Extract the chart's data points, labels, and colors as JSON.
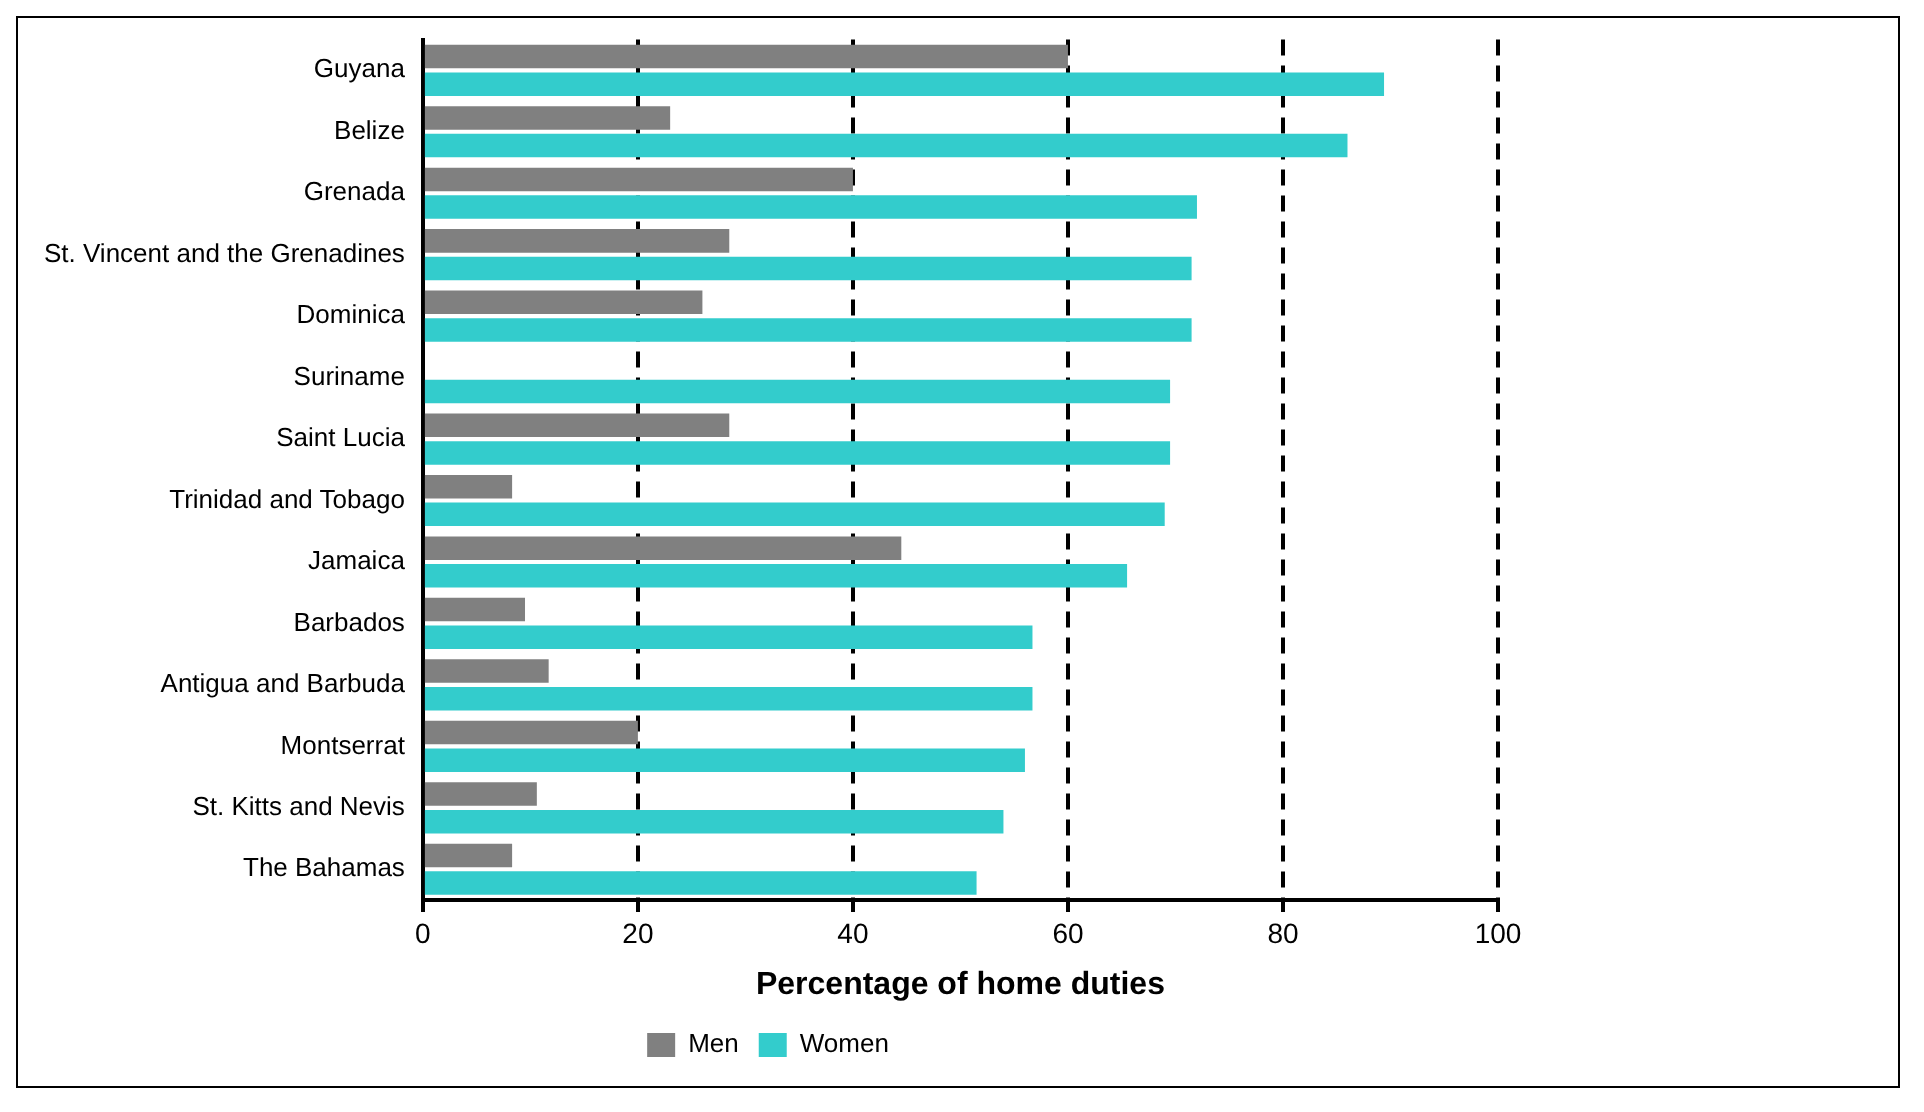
{
  "chart_data": {
    "type": "bar",
    "orientation": "horizontal",
    "xlabel": "Percentage of home duties",
    "categories": [
      "Guyana",
      "Belize",
      "Grenada",
      "St. Vincent and the Grenadines",
      "Dominica",
      "Suriname",
      "Saint Lucia",
      "Trinidad and Tobago",
      "Jamaica",
      "Barbados",
      "Antigua and Barbuda",
      "Montserrat",
      "St. Kitts and Nevis",
      "The Bahamas"
    ],
    "series": [
      {
        "name": "Men",
        "color": "#808080",
        "values": [
          60,
          23,
          40,
          28.5,
          26,
          null,
          28.5,
          8.3,
          44.5,
          9.5,
          11.7,
          20,
          10.6,
          8.3
        ]
      },
      {
        "name": "Women",
        "color": "#33cccc",
        "values": [
          89.4,
          86,
          72,
          71.5,
          71.5,
          69.5,
          69.5,
          69,
          65.5,
          56.7,
          56.7,
          56,
          54,
          51.5
        ]
      }
    ],
    "xlim": [
      0,
      100
    ],
    "xticks": [
      0,
      20,
      40,
      60,
      80,
      100
    ],
    "grid": "x",
    "line_style": "dashed",
    "legend": "bottom"
  }
}
